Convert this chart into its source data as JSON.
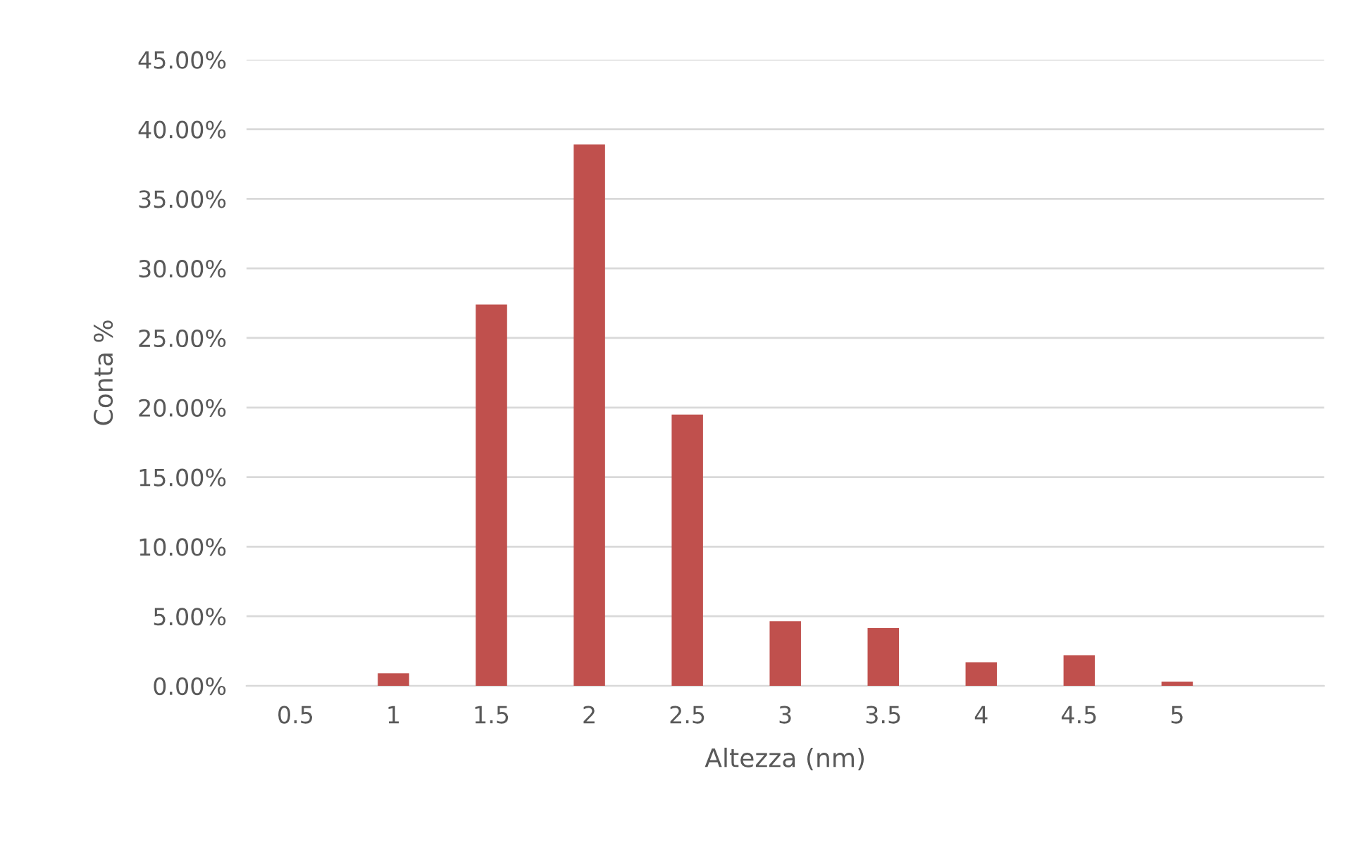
{
  "chart_data": {
    "type": "bar",
    "xlabel": "Altezza (nm)",
    "ylabel": "Conta %",
    "categories": [
      "0.5",
      "1",
      "1.5",
      "2",
      "2.5",
      "3",
      "3.5",
      "4",
      "4.5",
      "5",
      null
    ],
    "values": [
      0,
      0.9,
      27.4,
      38.9,
      19.5,
      4.65,
      4.15,
      1.7,
      2.2,
      0.3,
      null
    ],
    "color": "#c0504d",
    "ylim": [
      0,
      45
    ],
    "yticks": [
      {
        "value": 0,
        "label": "0.00%"
      },
      {
        "value": 5,
        "label": "5.00%"
      },
      {
        "value": 10,
        "label": "10.00%"
      },
      {
        "value": 15,
        "label": "15.00%"
      },
      {
        "value": 20,
        "label": "20.00%"
      },
      {
        "value": 25,
        "label": "25.00%"
      },
      {
        "value": 30,
        "label": "30.00%"
      },
      {
        "value": 35,
        "label": "35.00%"
      },
      {
        "value": 40,
        "label": "40.00%"
      },
      {
        "value": 45,
        "label": "45.00%"
      }
    ],
    "grid": "y"
  }
}
